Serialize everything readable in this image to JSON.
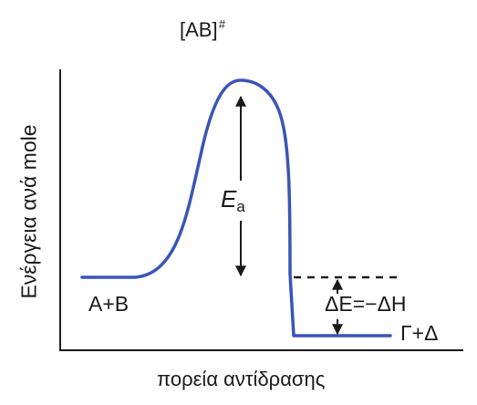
{
  "transition_state": {
    "base": "[AB]",
    "superscript": "#"
  },
  "axes": {
    "ylabel": "Ενέργεια ανά mole",
    "xlabel": "πορεία αντίδρασης"
  },
  "reactants_label": "A+B",
  "products_label": "Γ+Δ",
  "activation_energy": {
    "symbol": "E",
    "subscript": "a"
  },
  "enthalpy_label": "ΔE=−ΔH",
  "colors": {
    "curve": "#3a55b8",
    "axes": "#1a1a1a",
    "arrows": "#1a1a1a"
  }
}
